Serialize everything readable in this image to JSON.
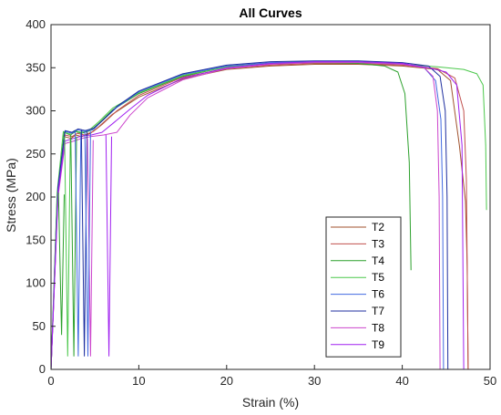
{
  "chart_data": {
    "type": "line",
    "title": "All Curves",
    "xlabel": "Strain (%)",
    "ylabel": "Stress (MPa)",
    "xlim": [
      0,
      50
    ],
    "ylim": [
      0,
      400
    ],
    "xticks": [
      0,
      10,
      20,
      30,
      40,
      50
    ],
    "yticks": [
      0,
      50,
      100,
      150,
      200,
      250,
      300,
      350,
      400
    ],
    "grid": true,
    "legend_position": "lower-right",
    "series": [
      {
        "name": "T2",
        "color": "#a0522d",
        "points": [
          [
            0,
            0
          ],
          [
            0.8,
            205
          ],
          [
            1.5,
            270
          ],
          [
            2.3,
            268
          ],
          [
            2.8,
            272
          ],
          [
            3.5,
            270
          ],
          [
            4.5,
            274
          ],
          [
            5.5,
            282
          ],
          [
            7,
            296
          ],
          [
            10,
            316
          ],
          [
            15,
            337
          ],
          [
            20,
            348
          ],
          [
            25,
            352
          ],
          [
            30,
            354
          ],
          [
            35,
            354
          ],
          [
            40,
            352
          ],
          [
            44,
            348
          ],
          [
            45.5,
            335
          ],
          [
            46.5,
            260
          ],
          [
            47.2,
            195
          ],
          [
            47.4,
            120
          ],
          [
            47.5,
            0
          ]
        ]
      },
      {
        "name": "T3",
        "color": "#c0504d",
        "points": [
          [
            0,
            0
          ],
          [
            0.8,
            210
          ],
          [
            1.6,
            272
          ],
          [
            2.4,
            270
          ],
          [
            3,
            274
          ],
          [
            3.8,
            272
          ],
          [
            4.8,
            276
          ],
          [
            5.8,
            284
          ],
          [
            7.5,
            300
          ],
          [
            10,
            318
          ],
          [
            15,
            339
          ],
          [
            20,
            349
          ],
          [
            25,
            353
          ],
          [
            30,
            355
          ],
          [
            35,
            355
          ],
          [
            40,
            353
          ],
          [
            44,
            349
          ],
          [
            46,
            338
          ],
          [
            47,
            300
          ],
          [
            47.3,
            220
          ],
          [
            47.5,
            0
          ]
        ]
      },
      {
        "name": "T4",
        "color": "#2ca02c",
        "points": [
          [
            0,
            0
          ],
          [
            0.7,
            200
          ],
          [
            1.5,
            275
          ],
          [
            2.2,
            272
          ],
          [
            2.8,
            276
          ],
          [
            3.5,
            274
          ],
          [
            4.5,
            277
          ],
          [
            5.5,
            286
          ],
          [
            7,
            301
          ],
          [
            10,
            320
          ],
          [
            15,
            340
          ],
          [
            20,
            351
          ],
          [
            25,
            355
          ],
          [
            30,
            356
          ],
          [
            35,
            355
          ],
          [
            38,
            352
          ],
          [
            39.5,
            345
          ],
          [
            40.3,
            320
          ],
          [
            40.8,
            240
          ],
          [
            41,
            115
          ]
        ]
      },
      {
        "name": "T5",
        "color": "#4cc84c",
        "points": [
          [
            0,
            0
          ],
          [
            0.7,
            205
          ],
          [
            1.4,
            276
          ],
          [
            2.1,
            273
          ],
          [
            2.7,
            277
          ],
          [
            3.4,
            275
          ],
          [
            4.4,
            278
          ],
          [
            5.4,
            287
          ],
          [
            7,
            303
          ],
          [
            10,
            321
          ],
          [
            15,
            341
          ],
          [
            20,
            351
          ],
          [
            25,
            355
          ],
          [
            30,
            356
          ],
          [
            35,
            356
          ],
          [
            40,
            354
          ],
          [
            44,
            351
          ],
          [
            47,
            348
          ],
          [
            48.5,
            343
          ],
          [
            49.2,
            330
          ],
          [
            49.5,
            260
          ],
          [
            49.6,
            185
          ]
        ]
      },
      {
        "name": "T6",
        "color": "#4169e1",
        "points": [
          [
            0,
            0
          ],
          [
            0.8,
            210
          ],
          [
            1.6,
            276
          ],
          [
            2.4,
            274
          ],
          [
            3,
            278
          ],
          [
            3.8,
            276
          ],
          [
            4.8,
            278
          ],
          [
            5.8,
            288
          ],
          [
            7.5,
            304
          ],
          [
            10,
            322
          ],
          [
            15,
            342
          ],
          [
            20,
            352
          ],
          [
            25,
            356
          ],
          [
            30,
            357
          ],
          [
            35,
            357
          ],
          [
            40,
            355
          ],
          [
            42.5,
            350
          ],
          [
            43.8,
            335
          ],
          [
            44.4,
            290
          ],
          [
            44.6,
            200
          ],
          [
            44.7,
            0
          ]
        ]
      },
      {
        "name": "T7",
        "color": "#1f2f9f",
        "points": [
          [
            0,
            0
          ],
          [
            0.8,
            212
          ],
          [
            1.6,
            277
          ],
          [
            2.4,
            275
          ],
          [
            3.1,
            279
          ],
          [
            3.9,
            277
          ],
          [
            4.9,
            280
          ],
          [
            5.9,
            289
          ],
          [
            7.5,
            305
          ],
          [
            10,
            323
          ],
          [
            15,
            343
          ],
          [
            20,
            353
          ],
          [
            25,
            357
          ],
          [
            30,
            358
          ],
          [
            35,
            358
          ],
          [
            40,
            356
          ],
          [
            43,
            352
          ],
          [
            44.3,
            340
          ],
          [
            44.9,
            300
          ],
          [
            45.1,
            200
          ],
          [
            45.2,
            0
          ]
        ]
      },
      {
        "name": "T8",
        "color": "#cc44cc",
        "points": [
          [
            0,
            0
          ],
          [
            0.8,
            200
          ],
          [
            1.6,
            262
          ],
          [
            2.6,
            265
          ],
          [
            3.5,
            268
          ],
          [
            4.5,
            270
          ],
          [
            6,
            272
          ],
          [
            7.5,
            275
          ],
          [
            9,
            295
          ],
          [
            11,
            315
          ],
          [
            15,
            336
          ],
          [
            20,
            349
          ],
          [
            25,
            354
          ],
          [
            30,
            356
          ],
          [
            35,
            356
          ],
          [
            40,
            354
          ],
          [
            42.5,
            350
          ],
          [
            43.5,
            340
          ],
          [
            44,
            300
          ],
          [
            44.2,
            200
          ],
          [
            44.3,
            0
          ]
        ]
      },
      {
        "name": "T9",
        "color": "#a020f0",
        "points": [
          [
            0,
            0
          ],
          [
            0.8,
            205
          ],
          [
            1.6,
            265
          ],
          [
            2.6,
            268
          ],
          [
            3.6,
            271
          ],
          [
            4.6,
            272
          ],
          [
            5.8,
            275
          ],
          [
            7,
            285
          ],
          [
            9,
            302
          ],
          [
            11,
            318
          ],
          [
            15,
            338
          ],
          [
            20,
            350
          ],
          [
            25,
            355
          ],
          [
            30,
            357
          ],
          [
            35,
            357
          ],
          [
            40,
            355
          ],
          [
            43,
            350
          ],
          [
            45,
            345
          ],
          [
            46.2,
            330
          ],
          [
            46.8,
            260
          ],
          [
            47,
            0
          ]
        ]
      }
    ],
    "unload_spikes": [
      {
        "color": "#4cc84c",
        "x": 1.9,
        "top": 270,
        "bottom": 15
      },
      {
        "color": "#2ca02c",
        "x": 2.6,
        "top": 272,
        "bottom": 15
      },
      {
        "color": "#4169e1",
        "x": 3.1,
        "top": 276,
        "bottom": 15
      },
      {
        "color": "#1f2f9f",
        "x": 3.8,
        "top": 278,
        "bottom": 15
      },
      {
        "color": "#cc44cc",
        "x": 4.5,
        "top": 268,
        "bottom": 15
      },
      {
        "color": "#a020f0",
        "x": 6.6,
        "top": 272,
        "bottom": 15
      },
      {
        "color": "#2ca02c",
        "x": 1.2,
        "top": 205,
        "bottom": 40
      },
      {
        "color": "#4169e1",
        "x": 4.2,
        "top": 278,
        "bottom": 15
      }
    ]
  }
}
